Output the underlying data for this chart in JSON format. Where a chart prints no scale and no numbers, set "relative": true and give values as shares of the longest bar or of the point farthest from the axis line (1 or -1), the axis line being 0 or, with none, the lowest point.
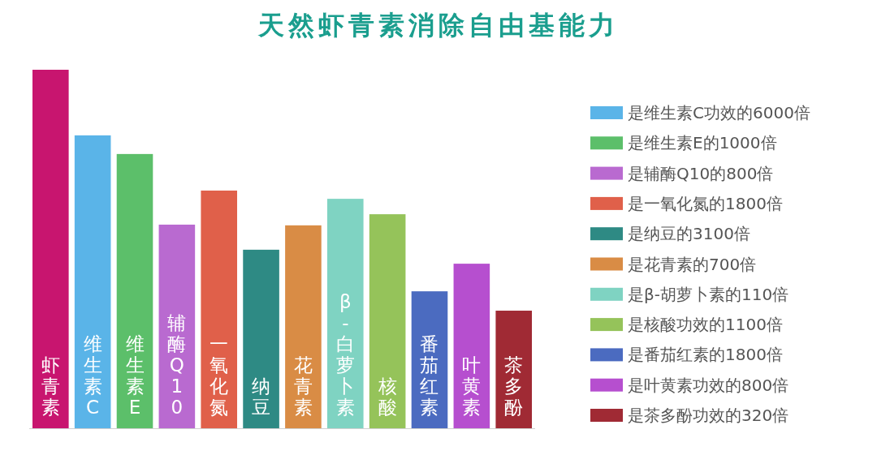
{
  "chart_data": {
    "type": "bar",
    "title": "天然虾青素消除自由基能力",
    "relative": true,
    "legend": "right",
    "categories": [
      "虾青素",
      "维生素C",
      "维生素E",
      "辅酶Q10",
      "一氧化氮",
      "纳豆",
      "花青素",
      "β-白萝卜素",
      "核酸",
      "番茄红素",
      "叶黄素",
      "茶多酚"
    ],
    "series": [
      {
        "color": "#c8156f",
        "values": [
          1,
          null,
          null,
          null,
          null,
          null,
          null,
          null,
          null,
          null,
          null,
          null
        ]
      },
      {
        "name": "是维生素C功效的6000倍",
        "color": "#5ab4e8",
        "values": [
          null,
          0.817,
          null,
          null,
          null,
          null,
          null,
          null,
          null,
          null,
          null,
          null
        ]
      },
      {
        "name": "是维生素E的1000倍",
        "color": "#5cbf6a",
        "values": [
          null,
          null,
          0.765,
          null,
          null,
          null,
          null,
          null,
          null,
          null,
          null,
          null
        ]
      },
      {
        "name": "是辅酶Q10的800倍",
        "color": "#b96ad0",
        "values": [
          null,
          null,
          null,
          0.568,
          null,
          null,
          null,
          null,
          null,
          null,
          null,
          null
        ]
      },
      {
        "name": "是一氧化氮的1800倍",
        "color": "#e0604a",
        "values": [
          null,
          null,
          null,
          null,
          0.663,
          null,
          null,
          null,
          null,
          null,
          null,
          null
        ]
      },
      {
        "name": "是纳豆的3100倍",
        "color": "#2e8a84",
        "values": [
          null,
          null,
          null,
          null,
          null,
          0.498,
          null,
          null,
          null,
          null,
          null,
          null
        ]
      },
      {
        "name": "是花青素的700倍",
        "color": "#d98c45",
        "values": [
          null,
          null,
          null,
          null,
          null,
          null,
          0.566,
          null,
          null,
          null,
          null,
          null
        ]
      },
      {
        "name": "是β-胡萝卜素的110倍",
        "color": "#7fd3c2",
        "values": [
          null,
          null,
          null,
          null,
          null,
          null,
          null,
          0.64,
          null,
          null,
          null,
          null
        ]
      },
      {
        "name": "是核酸功效的1100倍",
        "color": "#95c35a",
        "values": [
          null,
          null,
          null,
          null,
          null,
          null,
          null,
          null,
          0.597,
          null,
          null,
          null
        ]
      },
      {
        "name": "是番茄红素的1800倍",
        "color": "#4b6bc0",
        "values": [
          null,
          null,
          null,
          null,
          null,
          null,
          null,
          null,
          null,
          0.382,
          null,
          null
        ]
      },
      {
        "name": "是叶黄素功效的800倍",
        "color": "#b64fcf",
        "values": [
          null,
          null,
          null,
          null,
          null,
          null,
          null,
          null,
          null,
          null,
          0.459,
          null
        ]
      },
      {
        "name": "是茶多酚功效的320倍",
        "color": "#a02a34",
        "values": [
          null,
          null,
          null,
          null,
          null,
          null,
          null,
          null,
          null,
          null,
          null,
          0.328
        ]
      }
    ]
  }
}
